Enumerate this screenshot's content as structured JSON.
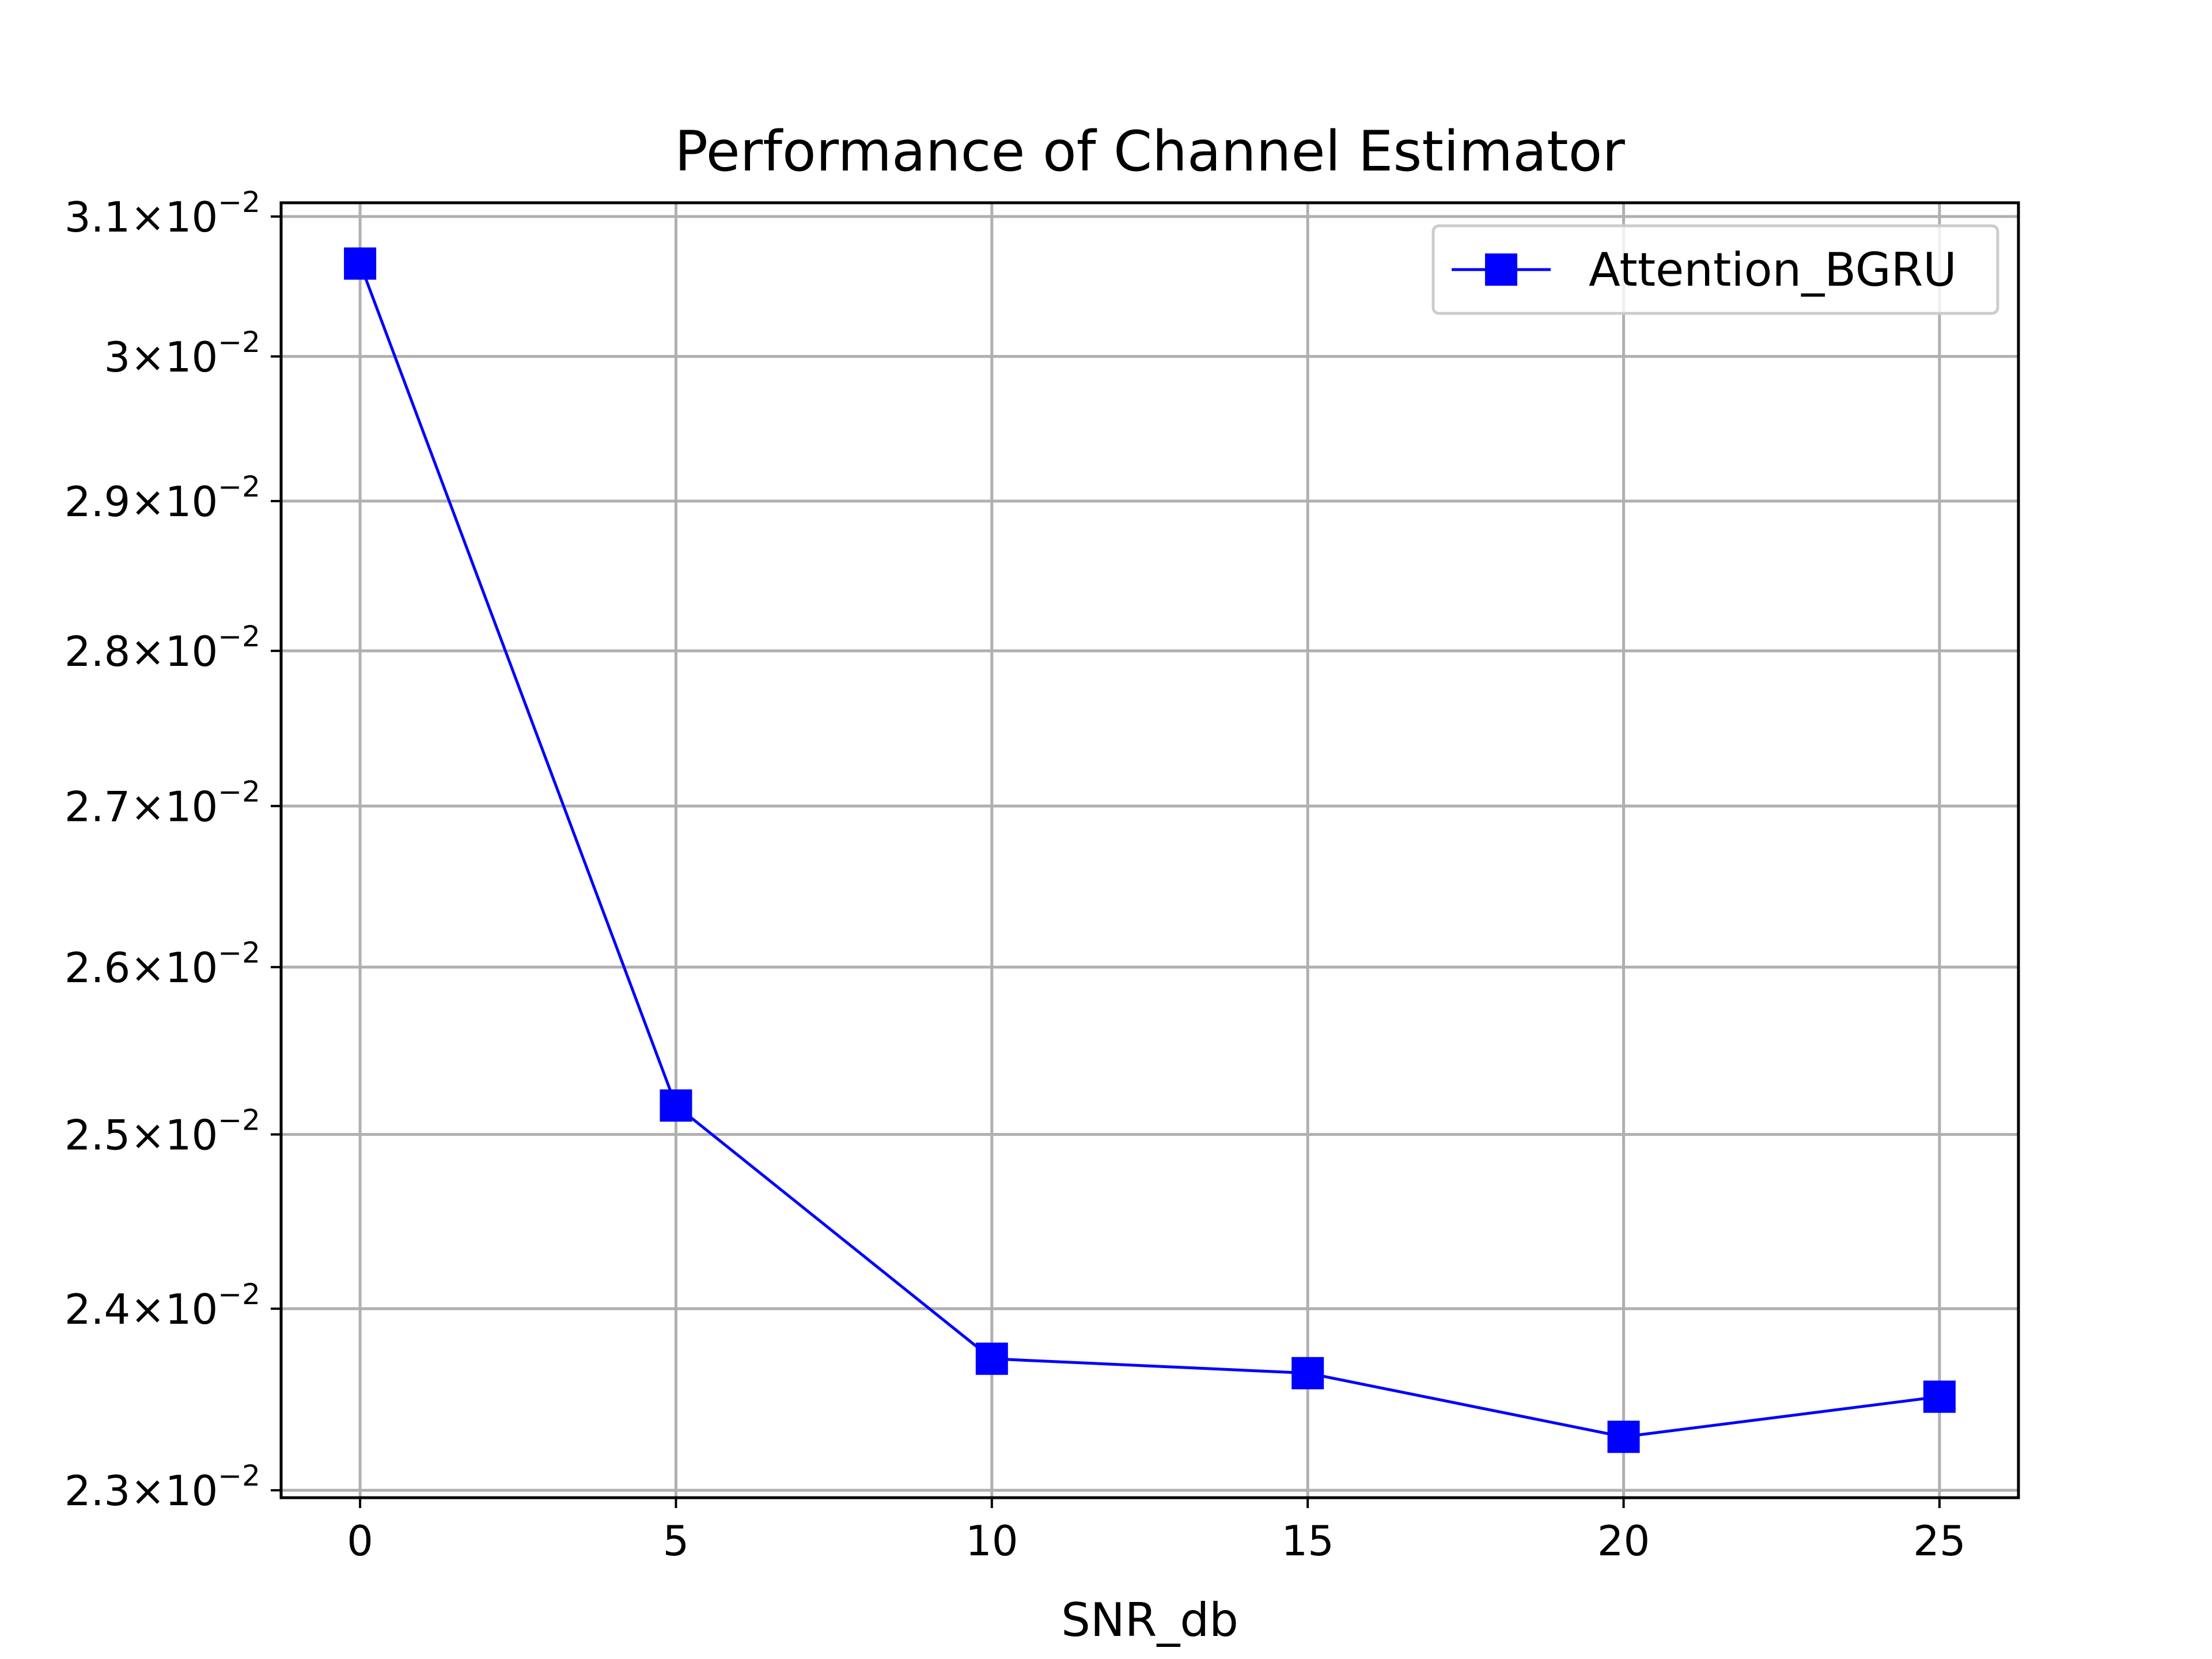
{
  "chart_data": {
    "type": "line",
    "title": "Performance of Channel Estimator",
    "xlabel": "SNR_db",
    "ylabel": "",
    "yscale": "log",
    "grid": true,
    "legend_position": "top-right",
    "xlim": [
      -1.25,
      26.25
    ],
    "ylim": [
      0.02296,
      0.0311
    ],
    "x_ticks": [
      0,
      5,
      10,
      15,
      20,
      25
    ],
    "y_ticks": [
      {
        "value": 0.023,
        "mantissa": "2.3",
        "base": "10",
        "exponent": "−2"
      },
      {
        "value": 0.024,
        "mantissa": "2.4",
        "base": "10",
        "exponent": "−2"
      },
      {
        "value": 0.025,
        "mantissa": "2.5",
        "base": "10",
        "exponent": "−2"
      },
      {
        "value": 0.026,
        "mantissa": "2.6",
        "base": "10",
        "exponent": "−2"
      },
      {
        "value": 0.027,
        "mantissa": "2.7",
        "base": "10",
        "exponent": "−2"
      },
      {
        "value": 0.028,
        "mantissa": "2.8",
        "base": "10",
        "exponent": "−2"
      },
      {
        "value": 0.029,
        "mantissa": "2.9",
        "base": "10",
        "exponent": "−2"
      },
      {
        "value": 0.03,
        "mantissa": "3",
        "base": "10",
        "exponent": "−2"
      },
      {
        "value": 0.031,
        "mantissa": "3.1",
        "base": "10",
        "exponent": "−2"
      }
    ],
    "series": [
      {
        "name": "Attention_BGRU",
        "color": "#0000ff",
        "marker": "square",
        "x": [
          0,
          5,
          10,
          15,
          20,
          25
        ],
        "y": [
          0.03066,
          0.02517,
          0.02372,
          0.02364,
          0.02329,
          0.02351
        ]
      }
    ]
  }
}
